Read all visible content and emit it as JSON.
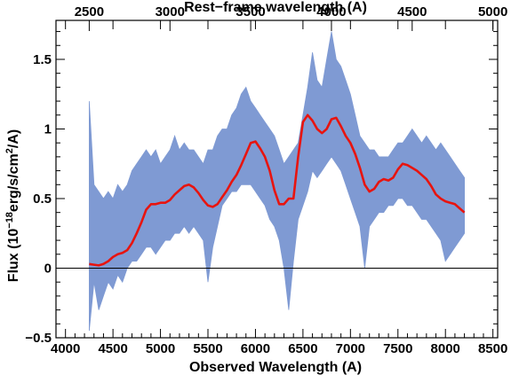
{
  "chart_data": {
    "type": "line",
    "title": "",
    "xlabel": "Observed Wavelength (A)",
    "ylabel_parts": {
      "prefix": "Flux (10",
      "exp1": "−18",
      "mid": "erg/s/cm",
      "exp2": "2",
      "suffix": "/A)"
    },
    "top_xlabel": "Rest−frame wavelength (A)",
    "xlim": [
      3900,
      8550
    ],
    "ylim": [
      -0.5,
      1.78
    ],
    "x_ticks": [
      4000,
      4500,
      5000,
      5500,
      6000,
      6500,
      7000,
      7500,
      8000,
      8500
    ],
    "x_tick_labels": [
      "4000",
      "4500",
      "5000",
      "5500",
      "6000",
      "6500",
      "7000",
      "7500",
      "8000",
      "8500"
    ],
    "y_ticks": [
      -0.5,
      0,
      0.5,
      1,
      1.5
    ],
    "y_tick_labels": [
      "−0.5",
      "0",
      "0.5",
      "1",
      "1.5"
    ],
    "top_x_ticks": [
      2500,
      3000,
      3500,
      4000,
      4500,
      5000
    ],
    "top_x_tick_labels": [
      "2500",
      "3000",
      "3500",
      "4000",
      "4500",
      "5000"
    ],
    "redshift_scale": 1.7,
    "reference_line_y": 0,
    "series": [
      {
        "kind": "spectrum-envelope",
        "color": "#7f9ad3",
        "x": [
          4250,
          4300,
          4350,
          4400,
          4450,
          4500,
          4550,
          4600,
          4650,
          4700,
          4750,
          4800,
          4850,
          4900,
          4950,
          5000,
          5050,
          5100,
          5150,
          5200,
          5250,
          5300,
          5350,
          5400,
          5450,
          5500,
          5550,
          5600,
          5650,
          5700,
          5750,
          5800,
          5850,
          5900,
          5950,
          6000,
          6050,
          6100,
          6150,
          6200,
          6250,
          6300,
          6350,
          6400,
          6450,
          6500,
          6550,
          6600,
          6650,
          6700,
          6750,
          6800,
          6850,
          6900,
          6950,
          7000,
          7050,
          7100,
          7150,
          7200,
          7250,
          7300,
          7350,
          7400,
          7450,
          7500,
          7550,
          7600,
          7650,
          7700,
          7750,
          7800,
          7850,
          7900,
          7950,
          8000,
          8050,
          8100,
          8150,
          8200
        ],
        "upper": [
          1.2,
          0.6,
          0.55,
          0.5,
          0.55,
          0.5,
          0.6,
          0.55,
          0.6,
          0.7,
          0.75,
          0.8,
          0.85,
          0.8,
          0.85,
          0.75,
          0.8,
          0.85,
          0.95,
          0.85,
          0.9,
          0.85,
          0.85,
          0.8,
          0.75,
          0.85,
          0.85,
          0.95,
          1.0,
          1.0,
          1.1,
          1.15,
          1.25,
          1.3,
          1.2,
          1.15,
          1.1,
          1.05,
          1.0,
          0.95,
          0.85,
          0.75,
          0.8,
          0.85,
          0.9,
          1.1,
          1.3,
          1.55,
          1.35,
          1.3,
          1.5,
          1.7,
          1.5,
          1.45,
          1.35,
          1.25,
          1.1,
          0.95,
          0.9,
          0.85,
          0.85,
          0.8,
          0.8,
          0.8,
          0.85,
          0.9,
          0.9,
          0.95,
          1.0,
          0.95,
          0.9,
          0.95,
          0.9,
          0.85,
          0.9,
          0.85,
          0.8,
          0.75,
          0.7,
          0.65
        ],
        "lower": [
          -0.45,
          -0.1,
          -0.3,
          -0.2,
          -0.1,
          -0.15,
          -0.05,
          -0.1,
          0.0,
          0.05,
          0.05,
          0.1,
          0.15,
          0.15,
          0.1,
          0.15,
          0.2,
          0.2,
          0.25,
          0.25,
          0.3,
          0.25,
          0.3,
          0.25,
          0.2,
          -0.1,
          0.15,
          0.3,
          0.45,
          0.5,
          0.55,
          0.55,
          0.6,
          0.6,
          0.6,
          0.55,
          0.5,
          0.45,
          0.35,
          0.3,
          0.2,
          0.0,
          -0.3,
          0.05,
          0.35,
          0.45,
          0.55,
          0.7,
          0.65,
          0.7,
          0.75,
          0.8,
          0.75,
          0.7,
          0.6,
          0.5,
          0.4,
          0.3,
          0.0,
          0.3,
          0.35,
          0.4,
          0.4,
          0.45,
          0.45,
          0.5,
          0.5,
          0.45,
          0.45,
          0.4,
          0.35,
          0.35,
          0.3,
          0.25,
          0.2,
          0.05,
          0.1,
          0.15,
          0.2,
          0.25
        ]
      },
      {
        "kind": "model-fit",
        "color": "#e8140f",
        "x": [
          4250,
          4300,
          4350,
          4400,
          4450,
          4500,
          4550,
          4600,
          4650,
          4700,
          4750,
          4800,
          4850,
          4900,
          4950,
          5000,
          5050,
          5100,
          5150,
          5200,
          5250,
          5300,
          5350,
          5400,
          5450,
          5500,
          5550,
          5600,
          5650,
          5700,
          5750,
          5800,
          5850,
          5900,
          5950,
          6000,
          6050,
          6100,
          6150,
          6200,
          6250,
          6300,
          6350,
          6400,
          6450,
          6500,
          6550,
          6600,
          6650,
          6700,
          6750,
          6800,
          6850,
          6900,
          6950,
          7000,
          7050,
          7100,
          7150,
          7200,
          7250,
          7300,
          7350,
          7400,
          7450,
          7500,
          7550,
          7600,
          7650,
          7700,
          7750,
          7800,
          7850,
          7900,
          7950,
          8000,
          8050,
          8100,
          8150,
          8200
        ],
        "y": [
          0.03,
          0.025,
          0.02,
          0.03,
          0.05,
          0.08,
          0.1,
          0.11,
          0.13,
          0.18,
          0.25,
          0.33,
          0.42,
          0.46,
          0.46,
          0.47,
          0.47,
          0.49,
          0.53,
          0.56,
          0.59,
          0.6,
          0.58,
          0.54,
          0.49,
          0.45,
          0.44,
          0.46,
          0.51,
          0.56,
          0.62,
          0.67,
          0.74,
          0.82,
          0.9,
          0.91,
          0.86,
          0.8,
          0.7,
          0.56,
          0.46,
          0.46,
          0.5,
          0.5,
          0.8,
          1.05,
          1.1,
          1.06,
          1.0,
          0.97,
          1.0,
          1.07,
          1.08,
          1.02,
          0.95,
          0.9,
          0.82,
          0.72,
          0.6,
          0.55,
          0.57,
          0.62,
          0.64,
          0.63,
          0.65,
          0.71,
          0.75,
          0.74,
          0.72,
          0.7,
          0.67,
          0.64,
          0.59,
          0.53,
          0.5,
          0.48,
          0.47,
          0.46,
          0.43,
          0.4
        ]
      }
    ]
  }
}
